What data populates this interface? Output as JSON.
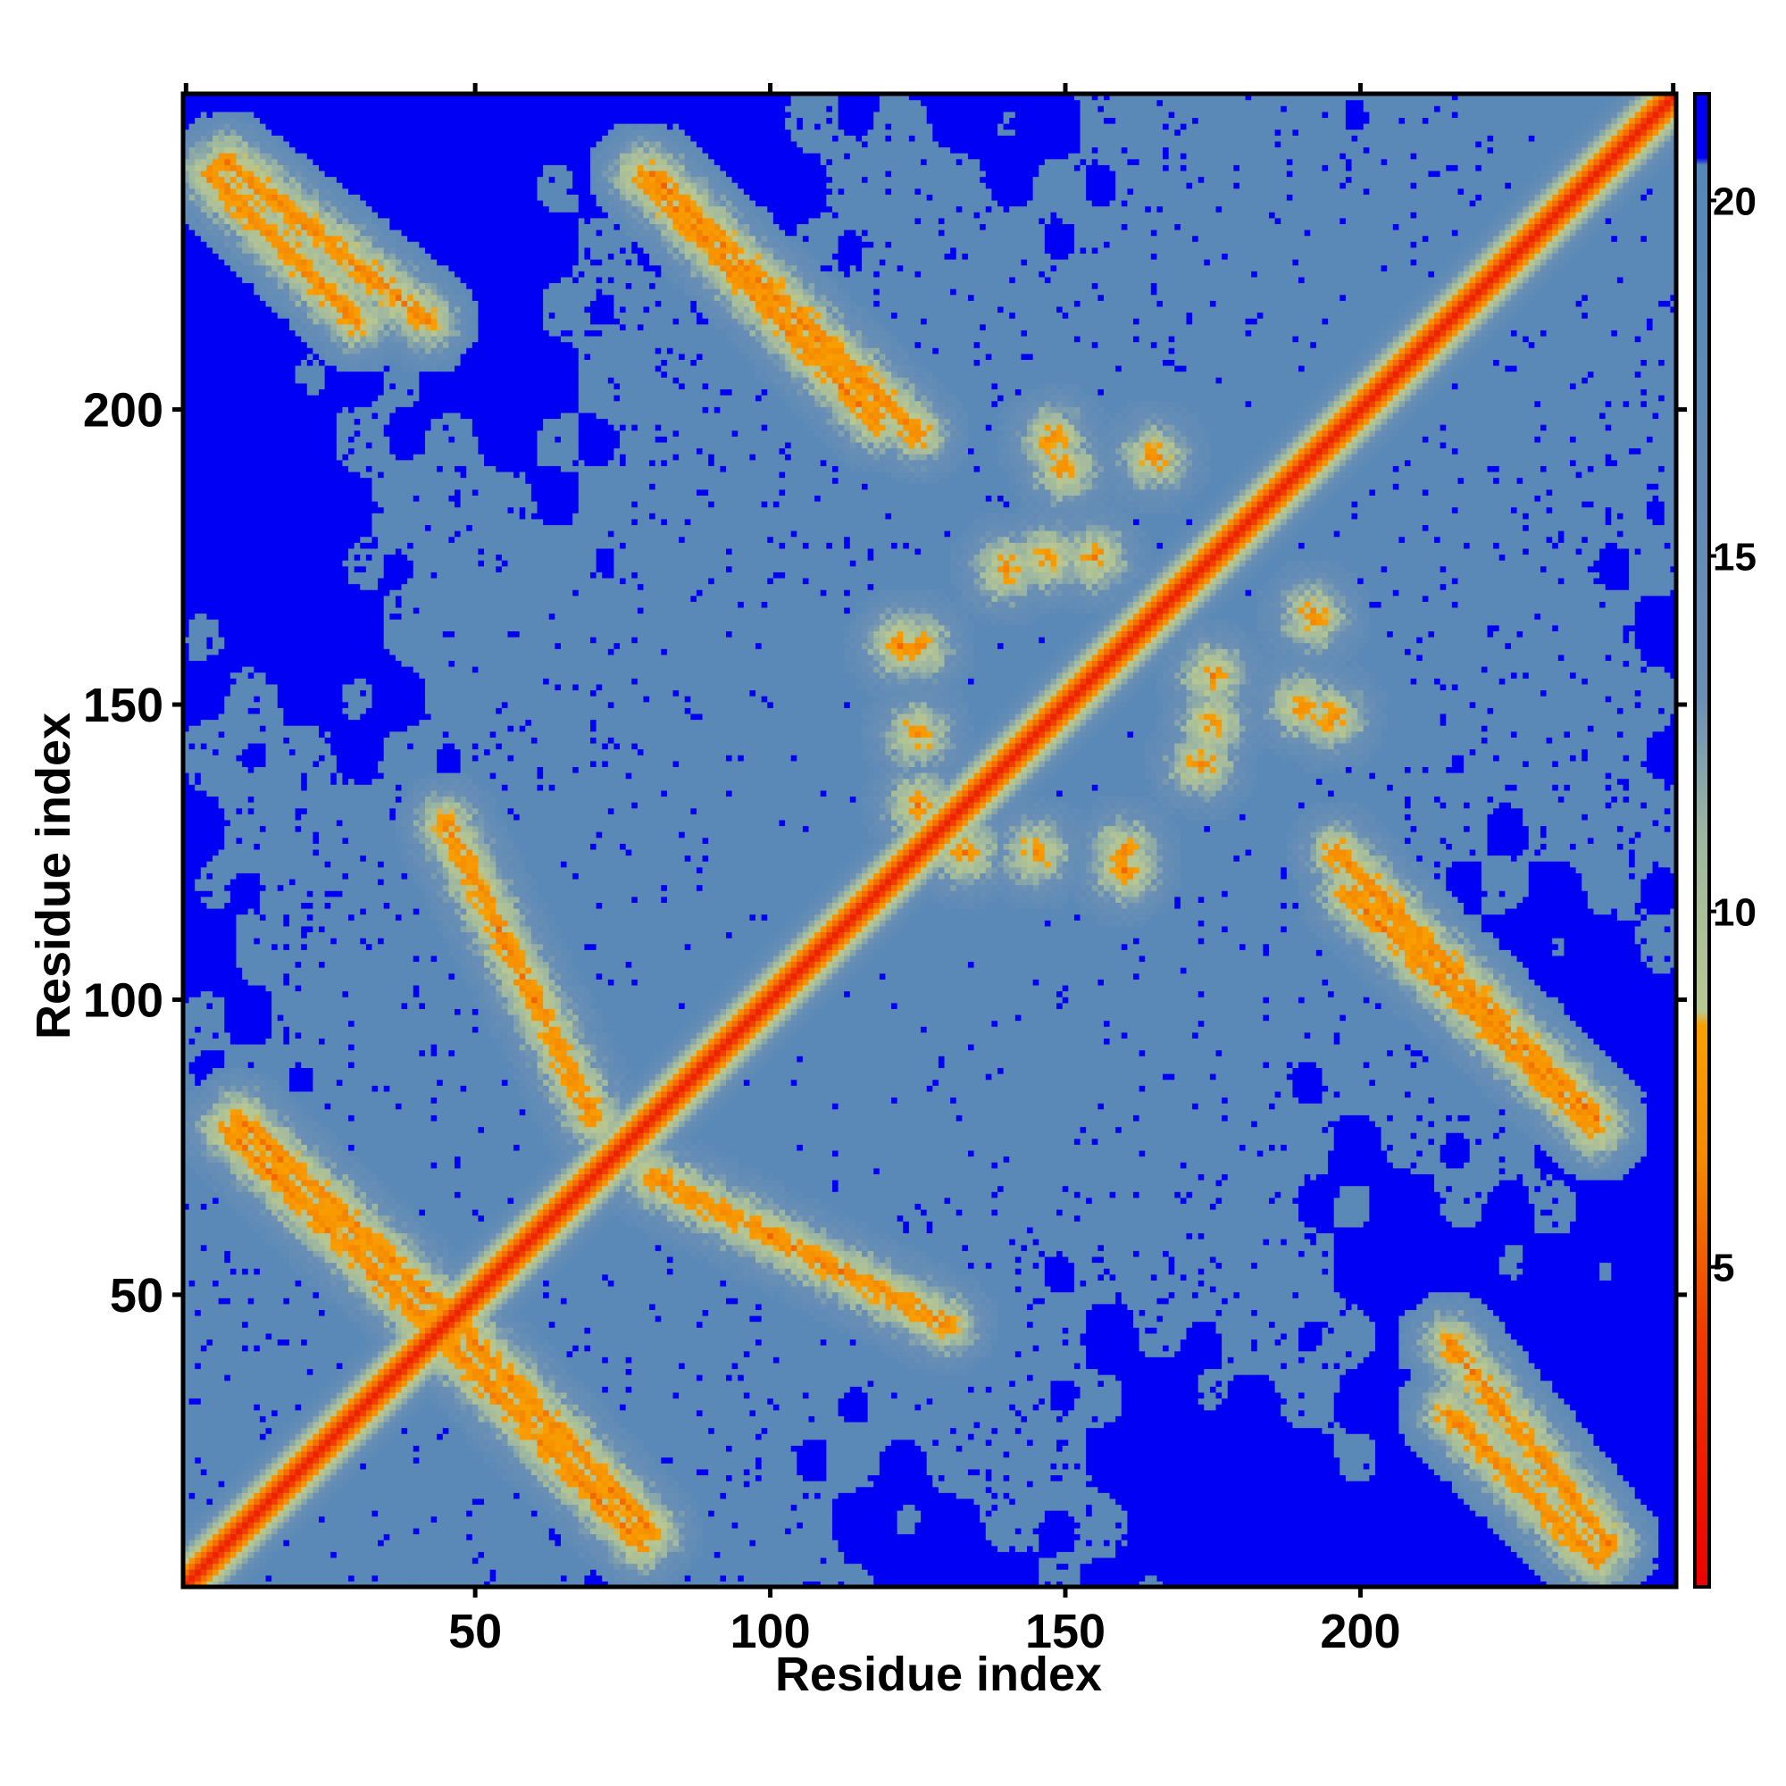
{
  "chart_data": {
    "type": "heatmap",
    "title": "",
    "xlabel": "Residue index",
    "ylabel": "Residue index",
    "xlim": [
      1,
      253
    ],
    "ylim": [
      1,
      253
    ],
    "x_ticks": [
      50,
      100,
      150,
      200
    ],
    "y_ticks": [
      50,
      100,
      150,
      200
    ],
    "x_tick_labels": [
      "50",
      "100",
      "150",
      "200"
    ],
    "y_tick_labels": [
      "50",
      "100",
      "150",
      "200"
    ],
    "n_residues": 253,
    "grid": false,
    "legend": "colorbar at right",
    "colorbar": {
      "range": [
        0.5,
        21.5
      ],
      "ticks": [
        5,
        10,
        15,
        20
      ],
      "tick_labels": [
        "5",
        "10",
        "15",
        "20"
      ],
      "stops": [
        {
          "value": 0.5,
          "color": "#ee0000"
        },
        {
          "value": 4.0,
          "color": "#f03800"
        },
        {
          "value": 6.5,
          "color": "#f58a00"
        },
        {
          "value": 8.4,
          "color": "#f9a000"
        },
        {
          "value": 8.6,
          "color": "#b9c890"
        },
        {
          "value": 11.0,
          "color": "#9fb8a0"
        },
        {
          "value": 13.0,
          "color": "#6a8fb5"
        },
        {
          "value": 20.5,
          "color": "#5587b8"
        },
        {
          "value": 20.6,
          "color": "#0000f5"
        },
        {
          "value": 21.5,
          "color": "#0000f5"
        }
      ]
    },
    "cap_value_color": "#0000f5",
    "background_color": "#5587b8",
    "contact_features": [
      {
        "kind": "diagonal",
        "from": 1,
        "to": 253
      },
      {
        "kind": "antiparallel_band",
        "x_from": 8,
        "x_to": 42,
        "y_from": 78,
        "y_to": 45
      },
      {
        "kind": "antiparallel_band",
        "x_from": 48,
        "x_to": 80,
        "y_from": 44,
        "y_to": 10
      },
      {
        "kind": "antiparallel_band",
        "x_from": 5,
        "x_to": 30,
        "y_from": 240,
        "y_to": 215
      },
      {
        "kind": "antiparallel_band",
        "x_from": 80,
        "x_to": 125,
        "y_from": 240,
        "y_to": 196
      },
      {
        "kind": "antiparallel_band",
        "x_from": 198,
        "x_to": 240,
        "y_from": 118,
        "y_to": 78
      },
      {
        "kind": "antiparallel_band",
        "x_from": 215,
        "x_to": 242,
        "y_from": 42,
        "y_to": 8
      },
      {
        "kind": "parallel_band",
        "x_from": 45,
        "x_to": 70,
        "y_from": 130,
        "y_to": 80
      },
      {
        "kind": "cluster",
        "x": 148,
        "y": 195
      },
      {
        "kind": "cluster",
        "x": 165,
        "y": 192
      },
      {
        "kind": "cluster",
        "x": 140,
        "y": 173
      },
      {
        "kind": "cluster",
        "x": 125,
        "y": 160
      },
      {
        "kind": "cluster",
        "x": 190,
        "y": 150
      },
      {
        "kind": "cluster",
        "x": 175,
        "y": 147
      },
      {
        "kind": "cluster",
        "x": 125,
        "y": 133
      },
      {
        "kind": "cluster",
        "x": 145,
        "y": 125
      },
      {
        "kind": "cluster",
        "x": 160,
        "y": 122
      },
      {
        "kind": "cluster",
        "x": 155,
        "y": 175
      }
    ]
  }
}
